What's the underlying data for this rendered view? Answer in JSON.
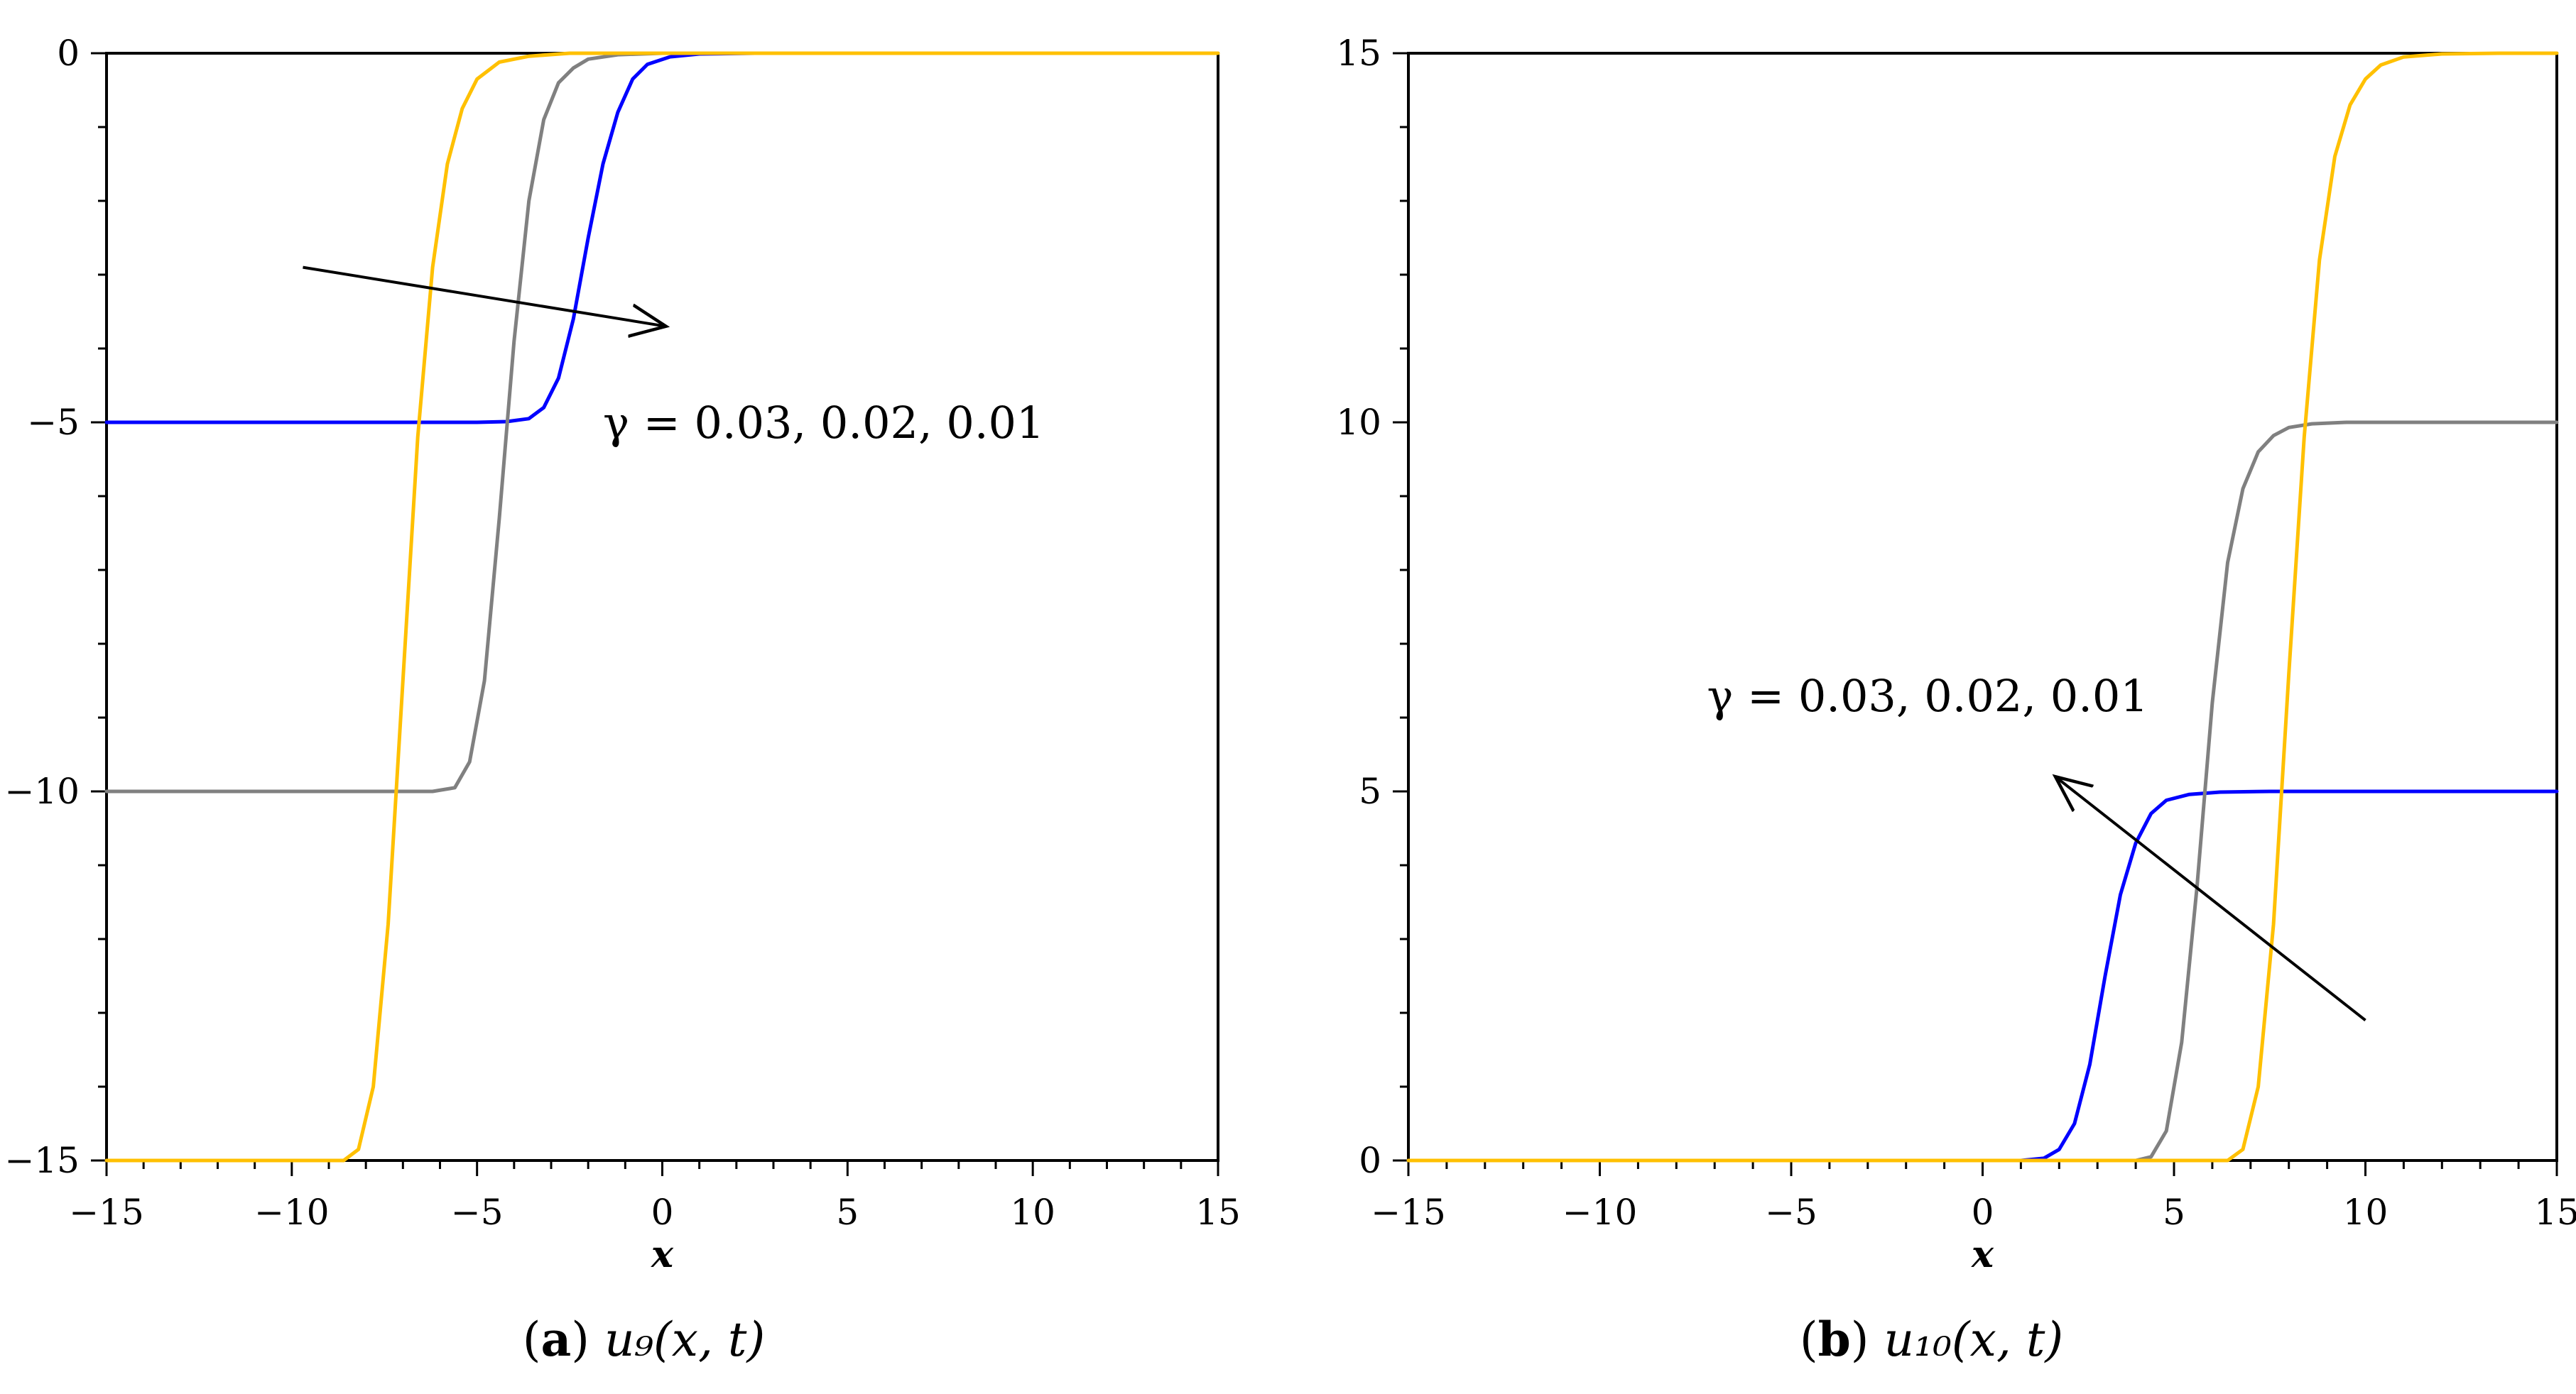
{
  "chart_data": [
    {
      "type": "line",
      "panel_label": "a",
      "caption_math": "u₉(x, t)",
      "xlabel": "x",
      "ylabel": "",
      "xlim": [
        -15,
        15
      ],
      "ylim": [
        -15,
        0
      ],
      "xticks": [
        -15,
        -10,
        -5,
        0,
        5,
        10,
        15
      ],
      "yticks": [
        0,
        -5,
        -10,
        -15
      ],
      "x_minor_step": 1,
      "y_minor_step": 1,
      "annotation": "γ = 0.03, 0.02, 0.01",
      "arrow": {
        "from": [
          -9.7,
          -2.9
        ],
        "to": [
          0.1,
          -3.7
        ]
      },
      "series": [
        {
          "color": "#0000ff",
          "x": [
            -15,
            -5,
            -4.2,
            -3.6,
            -3.2,
            -2.8,
            -2.4,
            -2.0,
            -1.6,
            -1.2,
            -0.8,
            -0.4,
            0.2,
            1.0,
            2.5
          ],
          "values": [
            -5,
            -5,
            -4.99,
            -4.95,
            -4.8,
            -4.4,
            -3.6,
            -2.5,
            -1.5,
            -0.8,
            -0.35,
            -0.15,
            -0.05,
            -0.01,
            0
          ]
        },
        {
          "color": "#808080",
          "x": [
            -15,
            -6.2,
            -5.6,
            -5.2,
            -4.8,
            -4.4,
            -4.0,
            -3.6,
            -3.2,
            -2.8,
            -2.4,
            -2.0,
            -1.2,
            0,
            2.5
          ],
          "values": [
            -10,
            -10,
            -9.95,
            -9.6,
            -8.5,
            -6.3,
            -3.9,
            -2.0,
            -0.9,
            -0.4,
            -0.2,
            -0.08,
            -0.02,
            0,
            0
          ]
        },
        {
          "color": "#ffc000",
          "x": [
            -15,
            -8.6,
            -8.2,
            -7.8,
            -7.4,
            -7.0,
            -6.6,
            -6.2,
            -5.8,
            -5.4,
            -5.0,
            -4.4,
            -3.6,
            -2.5,
            15
          ],
          "values": [
            -15,
            -15,
            -14.85,
            -14.0,
            -11.8,
            -8.5,
            -5.2,
            -2.9,
            -1.5,
            -0.75,
            -0.35,
            -0.12,
            -0.04,
            0,
            0
          ]
        }
      ]
    },
    {
      "type": "line",
      "panel_label": "b",
      "caption_math": "u₁₀(x, t)",
      "xlabel": "x",
      "ylabel": "",
      "xlim": [
        -15,
        15
      ],
      "ylim": [
        0,
        15
      ],
      "xticks": [
        -15,
        -10,
        -5,
        0,
        5,
        10,
        15
      ],
      "yticks": [
        0,
        5,
        10,
        15
      ],
      "x_minor_step": 1,
      "y_minor_step": 1,
      "annotation": "γ = 0.03, 0.02, 0.01",
      "arrow": {
        "from": [
          10.0,
          1.9
        ],
        "to": [
          1.9,
          5.2
        ]
      },
      "series": [
        {
          "color": "#0000ff",
          "x": [
            -15,
            1.0,
            1.6,
            2.0,
            2.4,
            2.8,
            3.2,
            3.6,
            4.0,
            4.4,
            4.8,
            5.4,
            6.2,
            7.5,
            15
          ],
          "values": [
            0,
            0,
            0.03,
            0.15,
            0.5,
            1.3,
            2.5,
            3.6,
            4.3,
            4.7,
            4.88,
            4.96,
            4.99,
            5,
            5
          ]
        },
        {
          "color": "#808080",
          "x": [
            -15,
            4.0,
            4.4,
            4.8,
            5.2,
            5.6,
            6.0,
            6.4,
            6.8,
            7.2,
            7.6,
            8.0,
            8.6,
            9.5,
            15
          ],
          "values": [
            0,
            0,
            0.05,
            0.4,
            1.6,
            3.7,
            6.2,
            8.1,
            9.1,
            9.6,
            9.82,
            9.93,
            9.98,
            10,
            10
          ]
        },
        {
          "color": "#ffc000",
          "x": [
            -15,
            6.4,
            6.8,
            7.2,
            7.6,
            8.0,
            8.4,
            8.8,
            9.2,
            9.6,
            10.0,
            10.4,
            11.0,
            12.0,
            13.5,
            15
          ],
          "values": [
            0,
            0,
            0.15,
            1.0,
            3.2,
            6.6,
            9.8,
            12.2,
            13.6,
            14.3,
            14.65,
            14.84,
            14.95,
            14.99,
            15,
            15
          ]
        }
      ]
    }
  ]
}
